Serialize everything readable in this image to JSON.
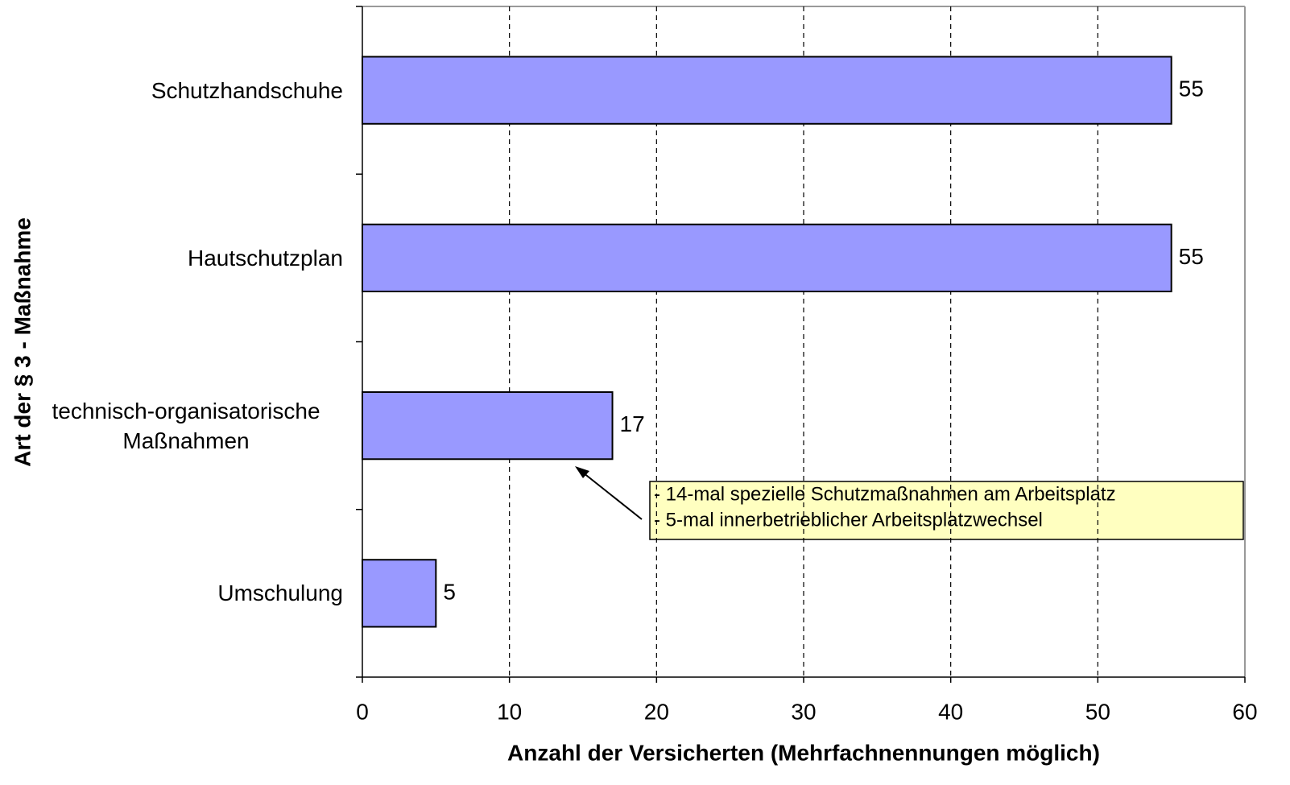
{
  "chart_data": {
    "type": "bar",
    "orientation": "horizontal",
    "x_label": "Anzahl der Versicherten (Mehrfachnennungen möglich)",
    "y_label": "Art der § 3 - Maßnahme",
    "categories": [
      "Schutzhandschuhe",
      "Hautschutzplan",
      "technisch-organisatorische Maßnahmen",
      "Umschulung"
    ],
    "values": [
      55,
      55,
      17,
      5
    ],
    "color": "#9999ff",
    "xlim": [
      0,
      60
    ],
    "xticks": [
      0,
      10,
      20,
      30,
      40,
      50,
      60
    ],
    "grid": true,
    "annotations": [
      "- 14-mal spezielle Schutzmaßnahmen am Arbeitsplatz",
      "-   5-mal innerbetrieblicher Arbeitsplatzwechsel"
    ]
  }
}
